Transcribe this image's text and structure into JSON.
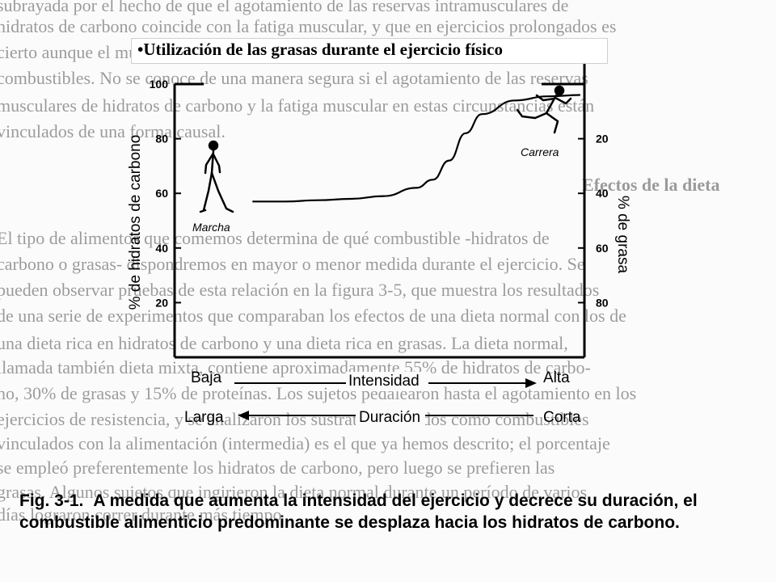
{
  "slide_title": "•Utilización de las grasas durante el ejercicio físico",
  "background_text_lines": [
    "subrayada por el hecho de que el agotamiento de las reservas intramusculares de",
    "hidratos de carbono coincide con la fatiga muscular, y que en ejercicios prolongados es",
    "cierto aunque el músculo disponga todavía de una gran cantidad de grasas como",
    "combustibles. No se conoce de una manera segura si el agotamiento de las reservas",
    "musculares de hidratos de carbono y la fatiga muscular en estas circunstancias están",
    "vinculados de una forma causal.",
    "Efectos de la dieta",
    "El tipo de alimentos que comemos determina de qué combustible -hidratos de",
    "carbono o grasas- dispondremos en mayor o menor medida durante el ejercicio. Se",
    "pueden observar pruebas de esta relación en la figura 3-5, que muestra los resultados",
    "de una serie de experimentos que comparaban los efectos de una dieta normal con los de",
    "una dieta rica en hidratos de carbono y una dieta rica en grasas. La dieta normal,",
    "llamada también dieta mixta, contiene aproximadamente 55% de hidratos de carbo-",
    "no, 30% de grasas y 15% de proteínas. Los sujetos pedalearon hasta el agotamiento en los",
    "ejercicios de resistencia, y se analizaron los sustratos utilizados como combustibles",
    "vinculados con la alimentación (intermedia) es el que ya hemos descrito; el porcentaje",
    "se empleó preferentemente los hidratos de carbono, pero luego se prefieren las",
    "grasas. Algunos sujetos que ingirieron la dieta normal durante un período de varios",
    "días lograron correr durante más tiempo"
  ],
  "chart_data": {
    "type": "line",
    "title": "",
    "ylabel_left": "% de hidratos de carbono",
    "ylabel_right": "% de grasa",
    "y_left_ticks": [
      20,
      40,
      60,
      80,
      100
    ],
    "y_right_ticks": [
      20,
      40,
      60,
      80
    ],
    "ylim_left": [
      0,
      100
    ],
    "ylim_right": [
      0,
      100
    ],
    "x": [
      0,
      0.1,
      0.2,
      0.3,
      0.4,
      0.5,
      0.55,
      0.6,
      0.65,
      0.7,
      0.8,
      0.9,
      1.0
    ],
    "series": [
      {
        "values": [
          57,
          57,
          57.5,
          58,
          59,
          62,
          65,
          72,
          82,
          89,
          94,
          95.5,
          96
        ]
      }
    ],
    "x_intensity_labels": {
      "low": "Baja",
      "axis": "Intensidad",
      "high": "Alta"
    },
    "x_duration_labels": {
      "long": "Larga",
      "axis": "Duración",
      "short": "Corta"
    },
    "annotations": [
      {
        "text": "Marcha",
        "at": "left"
      },
      {
        "text": "Carrera",
        "at": "right"
      }
    ],
    "grid": false
  },
  "caption": {
    "number": "Fig. 3-1.",
    "text": "A medida que aumenta la intensidad del ejercicio y decrece su duración, el combustible alimenticio predominante se desplaza hacia los hidratos de carbono."
  }
}
